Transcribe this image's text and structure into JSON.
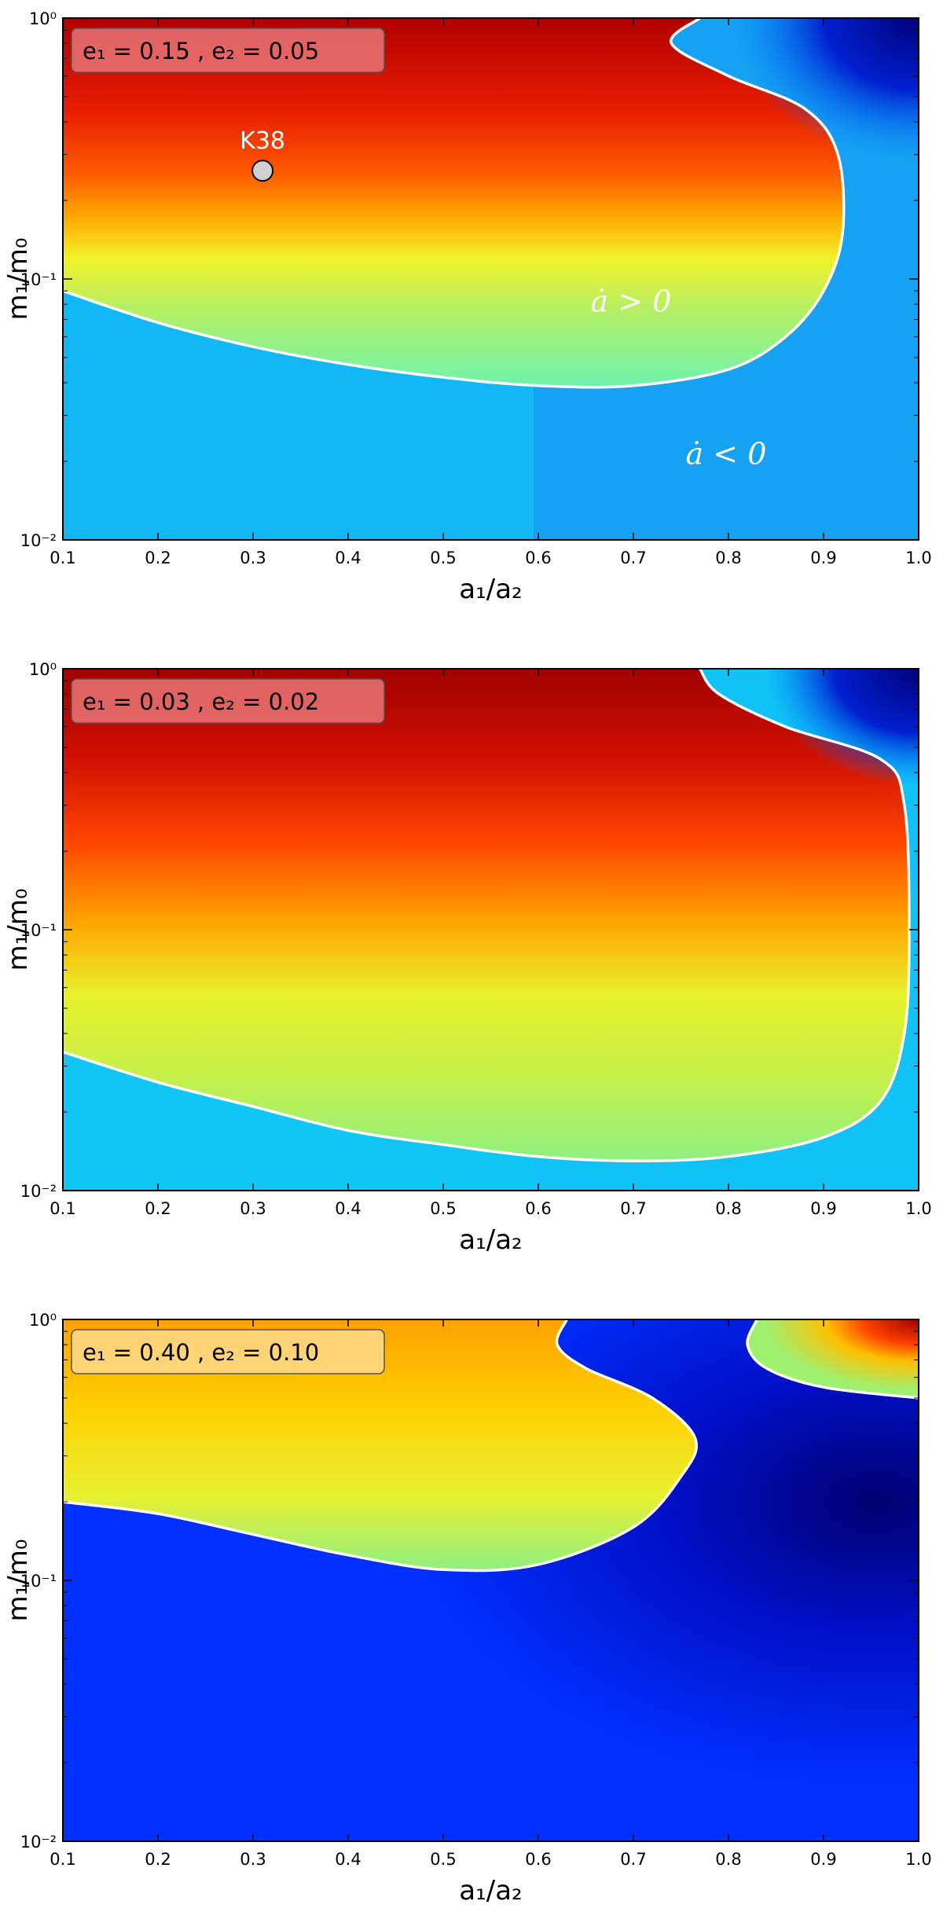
{
  "chart_data": [
    {
      "type": "heatmap",
      "xlabel": "a₁/a₂",
      "ylabel": "m₁/m₀",
      "xlim": [
        0.1,
        1.0
      ],
      "ylim": [
        0.01,
        1.0
      ],
      "yscale": "log",
      "xticks": [
        "0.1",
        "0.2",
        "0.3",
        "0.4",
        "0.5",
        "0.6",
        "0.7",
        "0.8",
        "0.9",
        "1.0"
      ],
      "yticks": [
        "10⁻²",
        "10⁻¹",
        "10⁰"
      ],
      "legend_text": "e₁ = 0.15 , e₂ = 0.05",
      "legend_color": "#e87474",
      "legend_placement": "top-left",
      "annotations": {
        "pos_label": "ȧ > 0",
        "neg_label": "ȧ < 0",
        "point_label": "K38"
      },
      "points": [
        {
          "name": "K38",
          "x": 0.31,
          "y": 0.26
        }
      ],
      "contour_adot_zero": [
        {
          "x": 0.1,
          "y": 0.09
        },
        {
          "x": 0.2,
          "y": 0.068
        },
        {
          "x": 0.3,
          "y": 0.055
        },
        {
          "x": 0.4,
          "y": 0.047
        },
        {
          "x": 0.5,
          "y": 0.042
        },
        {
          "x": 0.6,
          "y": 0.039
        },
        {
          "x": 0.7,
          "y": 0.039
        },
        {
          "x": 0.8,
          "y": 0.045
        },
        {
          "x": 0.86,
          "y": 0.06
        },
        {
          "x": 0.9,
          "y": 0.09
        },
        {
          "x": 0.92,
          "y": 0.15
        },
        {
          "x": 0.915,
          "y": 0.3
        },
        {
          "x": 0.88,
          "y": 0.45
        },
        {
          "x": 0.8,
          "y": 0.6
        },
        {
          "x": 0.74,
          "y": 0.8
        },
        {
          "x": 0.77,
          "y": 1.0
        }
      ]
    },
    {
      "type": "heatmap",
      "xlabel": "a₁/a₂",
      "ylabel": "m₁/m₀",
      "xlim": [
        0.1,
        1.0
      ],
      "ylim": [
        0.01,
        1.0
      ],
      "yscale": "log",
      "xticks": [
        "0.1",
        "0.2",
        "0.3",
        "0.4",
        "0.5",
        "0.6",
        "0.7",
        "0.8",
        "0.9",
        "1.0"
      ],
      "yticks": [
        "10⁻²",
        "10⁻¹",
        "10⁰"
      ],
      "legend_text": "e₁ = 0.03 , e₂ = 0.02",
      "legend_color": "#e87474",
      "legend_placement": "top-left",
      "contour_adot_zero": [
        {
          "x": 0.1,
          "y": 0.034
        },
        {
          "x": 0.2,
          "y": 0.026
        },
        {
          "x": 0.3,
          "y": 0.021
        },
        {
          "x": 0.4,
          "y": 0.017
        },
        {
          "x": 0.5,
          "y": 0.015
        },
        {
          "x": 0.6,
          "y": 0.0135
        },
        {
          "x": 0.7,
          "y": 0.013
        },
        {
          "x": 0.8,
          "y": 0.0135
        },
        {
          "x": 0.9,
          "y": 0.016
        },
        {
          "x": 0.96,
          "y": 0.022
        },
        {
          "x": 0.985,
          "y": 0.04
        },
        {
          "x": 0.99,
          "y": 0.1
        },
        {
          "x": 0.985,
          "y": 0.3
        },
        {
          "x": 0.96,
          "y": 0.45
        },
        {
          "x": 0.86,
          "y": 0.6
        },
        {
          "x": 0.79,
          "y": 0.8
        },
        {
          "x": 0.77,
          "y": 1.0
        }
      ]
    },
    {
      "type": "heatmap",
      "xlabel": "a₁/a₂",
      "ylabel": "m₁/m₀",
      "xlim": [
        0.1,
        1.0
      ],
      "ylim": [
        0.01,
        1.0
      ],
      "yscale": "log",
      "xticks": [
        "0.1",
        "0.2",
        "0.3",
        "0.4",
        "0.5",
        "0.6",
        "0.7",
        "0.8",
        "0.9",
        "1.0"
      ],
      "yticks": [
        "10⁻²",
        "10⁻¹",
        "10⁰"
      ],
      "legend_text": "e₁ = 0.40 , e₂ = 0.10",
      "legend_color": "#ffd98a",
      "legend_placement": "top-left",
      "contour_adot_zero": [
        {
          "x": 0.1,
          "y": 0.2
        },
        {
          "x": 0.2,
          "y": 0.18
        },
        {
          "x": 0.3,
          "y": 0.15
        },
        {
          "x": 0.4,
          "y": 0.125
        },
        {
          "x": 0.5,
          "y": 0.11
        },
        {
          "x": 0.6,
          "y": 0.115
        },
        {
          "x": 0.7,
          "y": 0.16
        },
        {
          "x": 0.75,
          "y": 0.25
        },
        {
          "x": 0.765,
          "y": 0.35
        },
        {
          "x": 0.72,
          "y": 0.5
        },
        {
          "x": 0.65,
          "y": 0.65
        },
        {
          "x": 0.62,
          "y": 0.8
        },
        {
          "x": 0.63,
          "y": 1.0
        }
      ],
      "contour_adot_zero_2": [
        {
          "x": 0.83,
          "y": 1.0
        },
        {
          "x": 0.82,
          "y": 0.8
        },
        {
          "x": 0.84,
          "y": 0.65
        },
        {
          "x": 0.9,
          "y": 0.55
        },
        {
          "x": 1.0,
          "y": 0.5
        }
      ]
    }
  ]
}
